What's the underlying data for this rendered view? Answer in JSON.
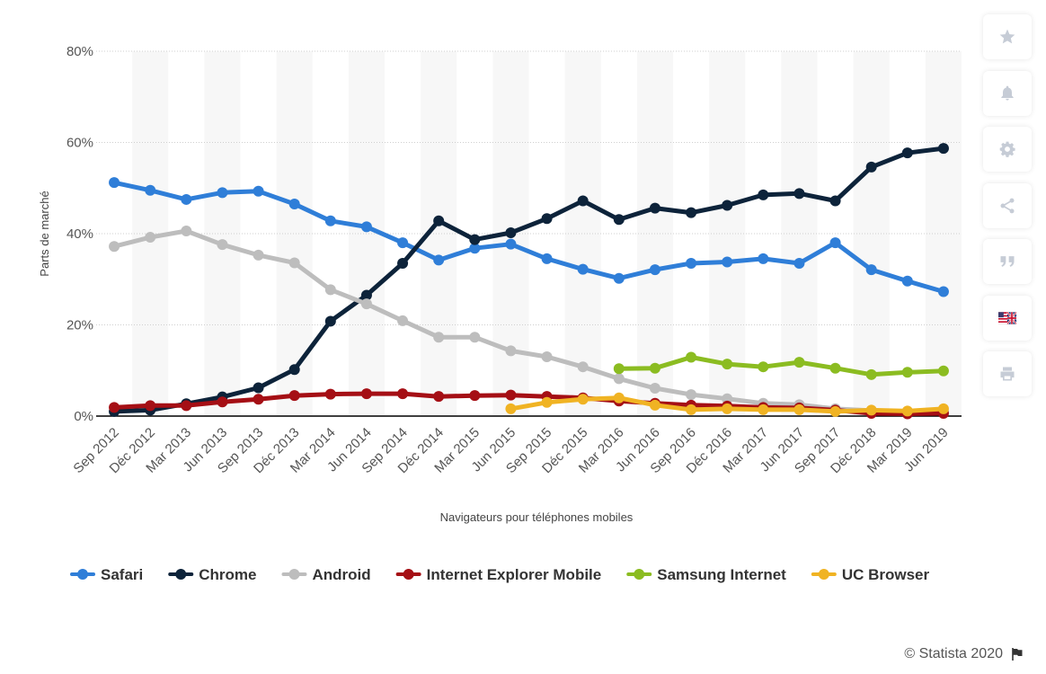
{
  "chart_data": {
    "type": "line",
    "xlabel": "Navigateurs pour téléphones mobiles",
    "ylabel": "Parts de marché",
    "ylim": [
      0,
      80
    ],
    "yticks": [
      "0%",
      "20%",
      "40%",
      "60%",
      "80%"
    ],
    "ytick_values": [
      0,
      20,
      40,
      60,
      80
    ],
    "grid": true,
    "legend_position": "bottom",
    "categories": [
      "Sep 2012",
      "Déc 2012",
      "Mar 2013",
      "Jun 2013",
      "Sep 2013",
      "Déc 2013",
      "Mar 2014",
      "Jun 2014",
      "Sep 2014",
      "Déc 2014",
      "Mar 2015",
      "Jun 2015",
      "Sep 2015",
      "Déc 2015",
      "Mar 2016",
      "Jun 2016",
      "Sep 2016",
      "Déc 2016",
      "Mar 2017",
      "Jun 2017",
      "Sep 2017",
      "Déc 2018",
      "Mar 2019",
      "Jun 2019"
    ],
    "series": [
      {
        "name": "Safari",
        "color": "#2f7ed8",
        "values": [
          51.2,
          49.5,
          47.5,
          49.0,
          49.3,
          46.5,
          42.8,
          41.5,
          38.0,
          34.2,
          36.8,
          37.7,
          34.5,
          32.2,
          30.2,
          32.1,
          33.5,
          33.8,
          34.5,
          33.5,
          38.0,
          32.1,
          29.6,
          27.3
        ]
      },
      {
        "name": "Chrome",
        "color": "#0d233a",
        "values": [
          1.0,
          1.3,
          2.7,
          4.2,
          6.2,
          10.2,
          20.8,
          26.5,
          33.5,
          42.8,
          38.7,
          40.2,
          43.3,
          47.2,
          43.1,
          45.6,
          44.6,
          46.2,
          48.5,
          48.8,
          47.2,
          54.6,
          57.7,
          58.7
        ]
      },
      {
        "name": "Android",
        "color": "#bdbdbd",
        "values": [
          37.2,
          39.2,
          40.6,
          37.6,
          35.3,
          33.6,
          27.7,
          24.6,
          20.9,
          17.3,
          17.3,
          14.3,
          13.0,
          10.8,
          8.2,
          6.1,
          4.7,
          3.8,
          2.8,
          2.5,
          1.6,
          1.2,
          1.0,
          1.0
        ]
      },
      {
        "name": "Internet Explorer Mobile",
        "color": "#a50f15",
        "values": [
          1.9,
          2.3,
          2.3,
          3.1,
          3.7,
          4.5,
          4.8,
          4.9,
          4.9,
          4.3,
          4.5,
          4.6,
          4.3,
          4.0,
          3.3,
          2.8,
          2.4,
          2.2,
          1.9,
          1.8,
          1.3,
          0.6,
          0.5,
          0.6
        ]
      },
      {
        "name": "Samsung Internet",
        "color": "#8bbc21",
        "values": [
          null,
          null,
          null,
          null,
          null,
          null,
          null,
          null,
          null,
          null,
          null,
          null,
          null,
          null,
          10.4,
          10.5,
          12.9,
          11.4,
          10.8,
          11.8,
          10.5,
          9.1,
          9.6,
          9.9
        ]
      },
      {
        "name": "UC Browser",
        "color": "#f0b323",
        "values": [
          null,
          null,
          null,
          null,
          null,
          null,
          null,
          null,
          null,
          null,
          null,
          1.6,
          3.0,
          3.7,
          4.0,
          2.4,
          1.4,
          1.6,
          1.4,
          1.4,
          1.0,
          1.3,
          1.1,
          1.6
        ]
      }
    ]
  },
  "toolbar": {
    "buttons": [
      "star-icon",
      "bell-icon",
      "gear-icon",
      "share-icon",
      "quote-icon",
      "flag-us-uk-icon",
      "print-icon"
    ]
  },
  "footer": {
    "copyright": "© Statista 2020"
  }
}
